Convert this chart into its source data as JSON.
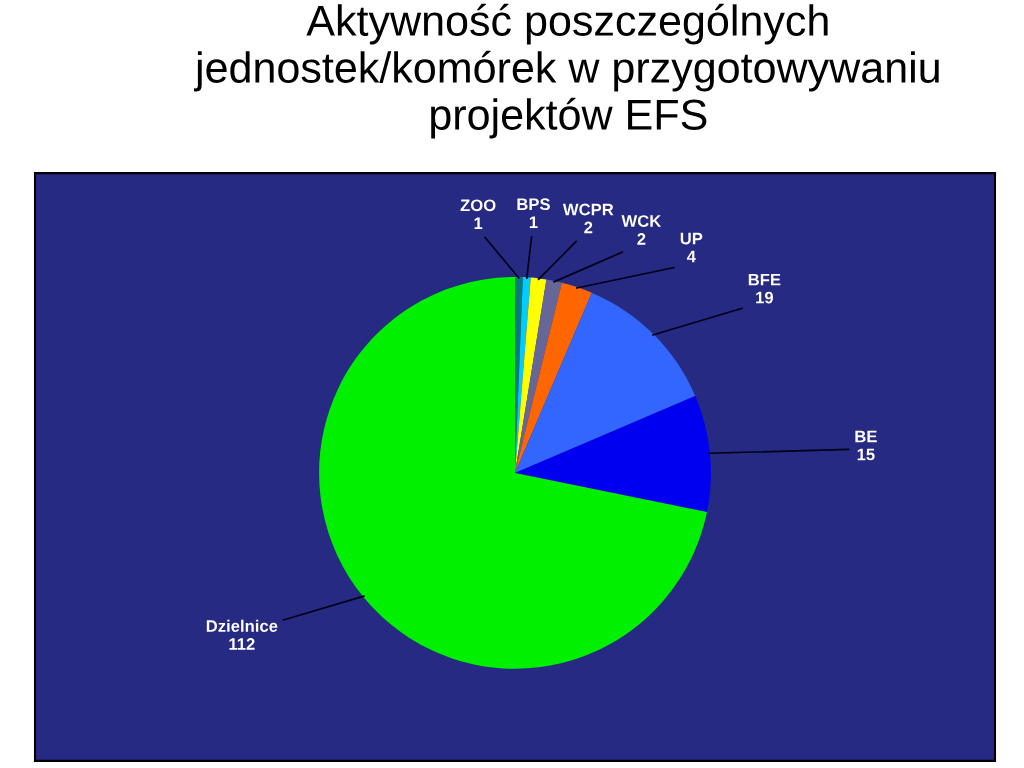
{
  "chart_data": {
    "type": "pie",
    "title": "Aktywność poszczególnych\njednostek/komórek w przygotowywaniu\nprojektów EFS",
    "categories": [
      "ZOO",
      "BPS",
      "WCPR",
      "WCK",
      "UP",
      "BFE",
      "BE",
      "Dzielnice"
    ],
    "values": [
      1,
      1,
      2,
      2,
      4,
      19,
      15,
      112
    ],
    "colors": [
      "#0a7a7a",
      "#00ccff",
      "#ffff00",
      "#666699",
      "#ff6600",
      "#3366ff",
      "#0000f0",
      "#00f000"
    ],
    "data_labels": true
  }
}
